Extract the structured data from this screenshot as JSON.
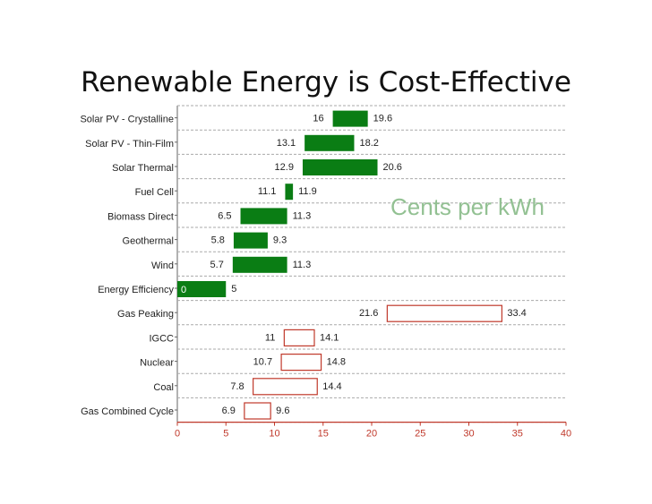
{
  "title": "Renewable Energy is Cost-Effective",
  "chart_data": {
    "type": "bar",
    "subtype": "floating-range-horizontal",
    "annotation": "Cents per kWh",
    "xlim": [
      0,
      40
    ],
    "xticks": [
      0,
      5,
      10,
      15,
      20,
      25,
      30,
      35,
      40
    ],
    "grid": true,
    "colors": {
      "renewable": "#0a7d14",
      "conventional": "#c0392b",
      "axis": "#c0392b",
      "grid": "#aaaaaa"
    },
    "categories": [
      {
        "label": "Solar PV - Crystalline",
        "low": 16,
        "high": 19.6,
        "group": "renewable"
      },
      {
        "label": "Solar PV - Thin-Film",
        "low": 13.1,
        "high": 18.2,
        "group": "renewable"
      },
      {
        "label": "Solar Thermal",
        "low": 12.9,
        "high": 20.6,
        "group": "renewable"
      },
      {
        "label": "Fuel Cell",
        "low": 11.1,
        "high": 11.9,
        "group": "renewable"
      },
      {
        "label": "Biomass Direct",
        "low": 6.5,
        "high": 11.3,
        "group": "renewable"
      },
      {
        "label": "Geothermal",
        "low": 5.8,
        "high": 9.3,
        "group": "renewable"
      },
      {
        "label": "Wind",
        "low": 5.7,
        "high": 11.3,
        "group": "renewable"
      },
      {
        "label": "Energy Efficiency",
        "low": 0,
        "high": 5,
        "group": "renewable"
      },
      {
        "label": "Gas Peaking",
        "low": 21.6,
        "high": 33.4,
        "group": "conventional"
      },
      {
        "label": "IGCC",
        "low": 11,
        "high": 14.1,
        "group": "conventional"
      },
      {
        "label": "Nuclear",
        "low": 10.7,
        "high": 14.8,
        "group": "conventional"
      },
      {
        "label": "Coal",
        "low": 7.8,
        "high": 14.4,
        "group": "conventional"
      },
      {
        "label": "Gas Combined Cycle",
        "low": 6.9,
        "high": 9.6,
        "group": "conventional"
      }
    ]
  }
}
